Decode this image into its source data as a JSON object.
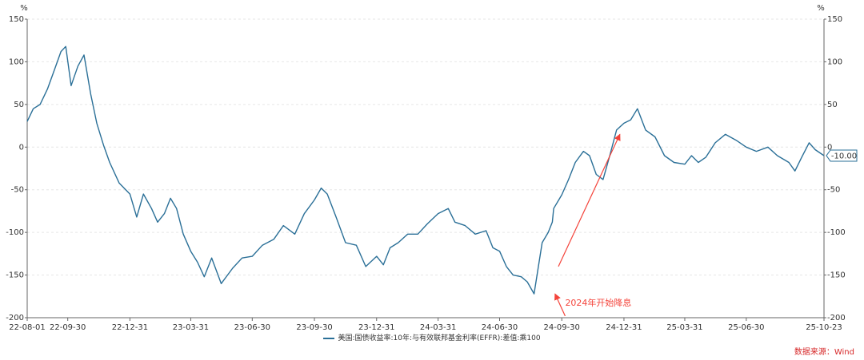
{
  "chart_data": {
    "type": "line",
    "title": "",
    "y_unit_left": "%",
    "y_unit_right": "%",
    "ylim": [
      -200,
      150
    ],
    "yticks": [
      150,
      100,
      50,
      0,
      -50,
      -100,
      -150,
      -200
    ],
    "ytick_labels": [
      "150",
      "100",
      "50",
      "0",
      "-50",
      "-100",
      "-150",
      "-200"
    ],
    "xlim": [
      "2022-08-01",
      "2025-10-23"
    ],
    "xticks": [
      "2022-08-01",
      "2022-09-30",
      "2022-12-31",
      "2023-03-31",
      "2023-06-30",
      "2023-09-30",
      "2023-12-31",
      "2024-03-31",
      "2024-06-30",
      "2024-09-30",
      "2024-12-31",
      "2025-03-31",
      "2025-06-30",
      "2025-10-23"
    ],
    "xtick_labels": [
      "22-08-01",
      "22-09-30",
      "22-12-31",
      "23-03-31",
      "23-06-30",
      "23-09-30",
      "23-12-31",
      "24-03-31",
      "24-06-30",
      "24-09-30",
      "24-12-31",
      "25-03-31",
      "25-06-30",
      "25-10-23"
    ],
    "grid": true,
    "series": [
      {
        "name": "美国:国债收益率:10年:与有效联邦基金利率(EFFR):差值:乘100",
        "color": "#2a6f97",
        "x": [
          "2022-08-01",
          "2022-08-10",
          "2022-08-20",
          "2022-08-31",
          "2022-09-10",
          "2022-09-20",
          "2022-09-27",
          "2022-10-05",
          "2022-10-15",
          "2022-10-24",
          "2022-11-03",
          "2022-11-12",
          "2022-11-22",
          "2022-12-01",
          "2022-12-15",
          "2022-12-31",
          "2023-01-10",
          "2023-01-20",
          "2023-02-01",
          "2023-02-10",
          "2023-02-20",
          "2023-03-01",
          "2023-03-10",
          "2023-03-20",
          "2023-03-31",
          "2023-04-10",
          "2023-04-20",
          "2023-05-01",
          "2023-05-15",
          "2023-06-01",
          "2023-06-15",
          "2023-06-30",
          "2023-07-15",
          "2023-08-01",
          "2023-08-15",
          "2023-09-01",
          "2023-09-15",
          "2023-09-30",
          "2023-10-10",
          "2023-10-19",
          "2023-11-01",
          "2023-11-15",
          "2023-12-01",
          "2023-12-15",
          "2023-12-31",
          "2024-01-10",
          "2024-01-20",
          "2024-02-01",
          "2024-02-15",
          "2024-03-01",
          "2024-03-15",
          "2024-03-31",
          "2024-04-15",
          "2024-04-25",
          "2024-05-10",
          "2024-05-25",
          "2024-06-10",
          "2024-06-20",
          "2024-06-30",
          "2024-07-10",
          "2024-07-20",
          "2024-08-01",
          "2024-08-10",
          "2024-08-20",
          "2024-09-01",
          "2024-09-10",
          "2024-09-16",
          "2024-09-18",
          "2024-09-30",
          "2024-10-10",
          "2024-10-20",
          "2024-11-01",
          "2024-11-10",
          "2024-11-20",
          "2024-11-30",
          "2024-12-10",
          "2024-12-20",
          "2024-12-31",
          "2025-01-10",
          "2025-01-20",
          "2025-02-01",
          "2025-02-15",
          "2025-03-01",
          "2025-03-15",
          "2025-03-31",
          "2025-04-10",
          "2025-04-20",
          "2025-05-01",
          "2025-05-15",
          "2025-05-30",
          "2025-06-15",
          "2025-06-30",
          "2025-07-15",
          "2025-08-01",
          "2025-08-15",
          "2025-09-01",
          "2025-09-10",
          "2025-09-20",
          "2025-10-01",
          "2025-10-10",
          "2025-10-23"
        ],
        "values": [
          30,
          45,
          50,
          68,
          90,
          112,
          118,
          72,
          95,
          108,
          62,
          28,
          2,
          -18,
          -42,
          -55,
          -82,
          -55,
          -72,
          -88,
          -78,
          -60,
          -72,
          -102,
          -122,
          -135,
          -152,
          -130,
          -160,
          -142,
          -130,
          -128,
          -115,
          -108,
          -92,
          -102,
          -78,
          -62,
          -48,
          -55,
          -82,
          -112,
          -115,
          -140,
          -128,
          -138,
          -118,
          -112,
          -102,
          -102,
          -90,
          -78,
          -72,
          -88,
          -92,
          -102,
          -98,
          -118,
          -122,
          -140,
          -150,
          -152,
          -158,
          -172,
          -112,
          -100,
          -88,
          -72,
          -56,
          -38,
          -18,
          -5,
          -10,
          -32,
          -38,
          -10,
          20,
          28,
          32,
          45,
          20,
          12,
          -10,
          -18,
          -20,
          -10,
          -18,
          -12,
          5,
          15,
          8,
          0,
          -5,
          0,
          -10,
          -18,
          -28,
          -12,
          5,
          -3,
          -10
        ]
      }
    ],
    "annotation": {
      "text": "2024年开始降息",
      "color": "#f4433a",
      "arrows": [
        {
          "from": [
            "2024-09-25",
            -140
          ],
          "to": [
            "2024-12-25",
            15
          ]
        },
        {
          "from": [
            "2024-10-05",
            -198
          ],
          "to": [
            "2024-09-20",
            -172
          ]
        }
      ],
      "text_anchor": [
        "2024-10-05",
        -182
      ]
    },
    "last_value_label": "-10.00"
  },
  "legend_label": "美国:国债收益率:10年:与有效联邦基金利率(EFFR):差值:乘100",
  "source_text": "数据来源：Wind"
}
